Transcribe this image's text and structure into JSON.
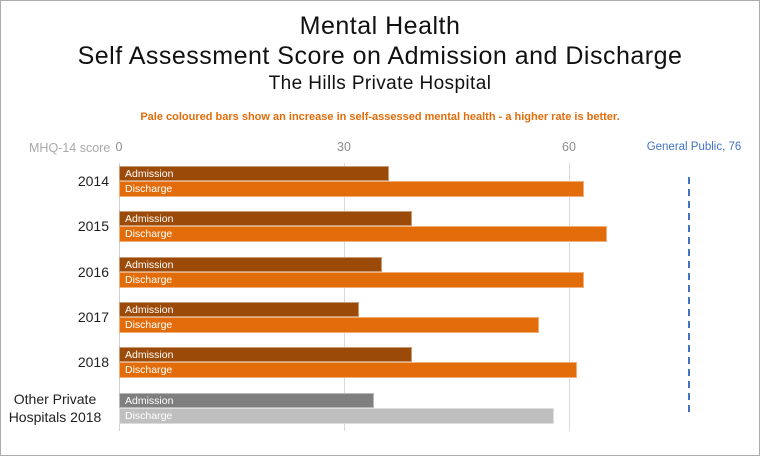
{
  "title": {
    "line1": "Mental Health",
    "line2": "Self Assessment Score on Admission and Discharge",
    "line3": "The Hills Private Hospital"
  },
  "note": "Pale coloured bars show an increase in self-assessed mental health - a higher rate is better.",
  "axis_unit_label": "MHQ-14 score",
  "chart_data": {
    "type": "bar",
    "orientation": "horizontal",
    "title": "Mental Health - Self Assessment Score on Admission and Discharge - The Hills Private Hospital",
    "categories": [
      "2014",
      "2015",
      "2016",
      "2017",
      "2018",
      "Other Private\nHospitals 2018"
    ],
    "series": [
      {
        "name": "Admission",
        "values": [
          36,
          39,
          35,
          32,
          39,
          34
        ]
      },
      {
        "name": "Discharge",
        "values": [
          62,
          65,
          62,
          56,
          61,
          58
        ]
      }
    ],
    "row_colors": [
      {
        "admission": "#9c4a08",
        "discharge": "#e36c0a"
      },
      {
        "admission": "#9c4a08",
        "discharge": "#e36c0a"
      },
      {
        "admission": "#9c4a08",
        "discharge": "#e36c0a"
      },
      {
        "admission": "#9c4a08",
        "discharge": "#e36c0a"
      },
      {
        "admission": "#9c4a08",
        "discharge": "#e36c0a"
      },
      {
        "admission": "#7f7f7f",
        "discharge": "#bfbfbf"
      }
    ],
    "axis": {
      "ticks": [
        0,
        30,
        60
      ],
      "xlim": [
        0,
        85
      ],
      "gridlines": true
    },
    "reference_line": {
      "label": "General Public, 76",
      "value": 76,
      "color": "#4472c4",
      "style": "dashed"
    },
    "legend": "none"
  },
  "colors": {
    "admission_orange": "#9c4a08",
    "discharge_orange": "#e36c0a",
    "admission_gray": "#7f7f7f",
    "discharge_gray": "#bfbfbf",
    "note_orange": "#e36c0a",
    "reference_blue": "#4472c4",
    "tick_gray": "#8c8c8c",
    "gridline_gray": "#d9d9d9"
  }
}
